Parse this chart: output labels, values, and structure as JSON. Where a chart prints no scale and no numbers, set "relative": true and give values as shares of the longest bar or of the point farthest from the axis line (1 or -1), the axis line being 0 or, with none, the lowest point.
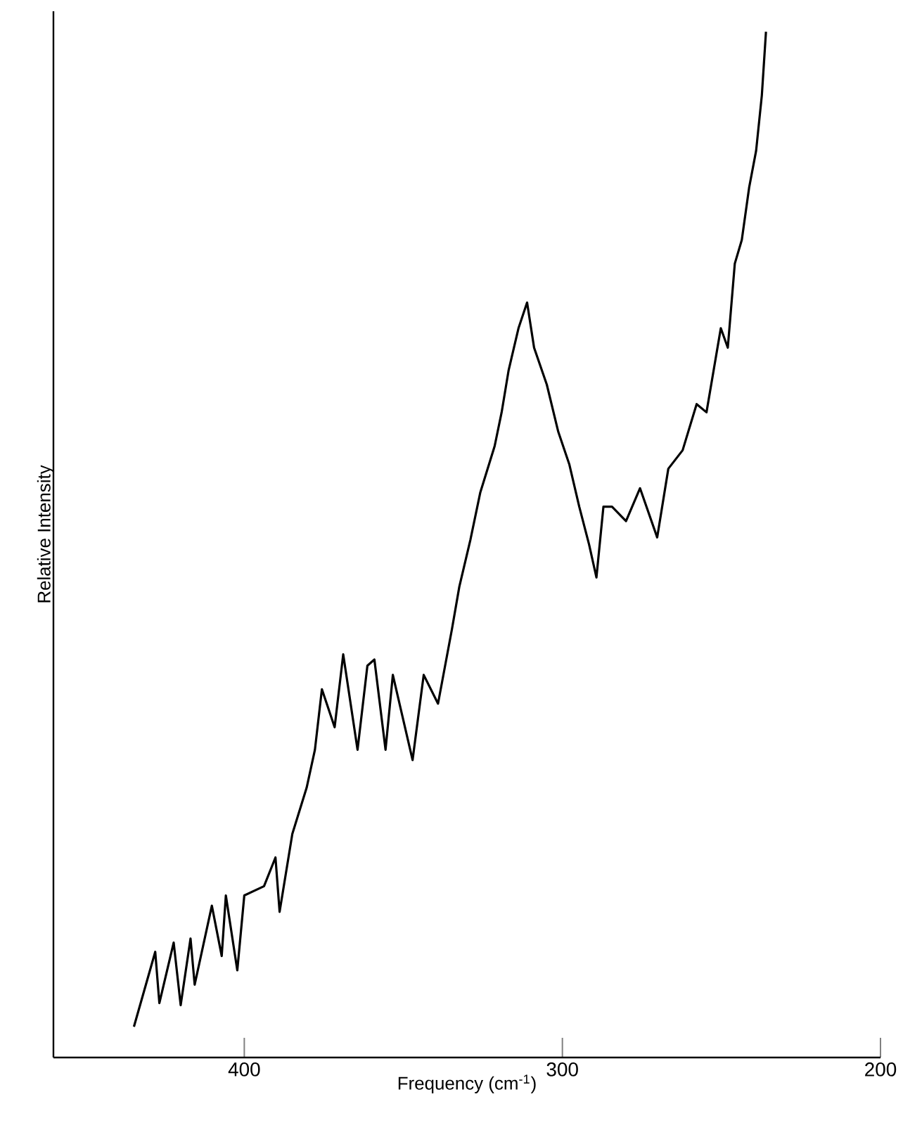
{
  "chart_data": {
    "type": "line",
    "xlabel": "Frequency (cm$^{-1}$)",
    "ylabel": "Relative Intensity",
    "relative": true,
    "color": "#000000",
    "xlim": [
      460,
      200
    ],
    "xticks": [
      400,
      300,
      200
    ],
    "x": [
      434.7,
      428.0,
      426.7,
      422.2,
      420.0,
      416.9,
      415.6,
      410.2,
      407.1,
      405.8,
      402.2,
      400.0,
      393.8,
      390.2,
      388.9,
      384.9,
      380.4,
      377.8,
      375.6,
      371.6,
      368.9,
      364.4,
      361.3,
      359.1,
      355.6,
      353.3,
      347.1,
      343.6,
      339.1,
      334.7,
      332.4,
      328.9,
      325.8,
      321.3,
      319.1,
      316.9,
      313.8,
      311.1,
      308.9,
      304.9,
      301.3,
      297.8,
      294.7,
      291.6,
      289.3,
      287.1,
      284.4,
      280.0,
      275.6,
      270.2,
      266.7,
      262.2,
      257.8,
      254.7,
      250.2,
      248.0,
      245.8,
      243.6,
      241.3,
      239.1,
      237.3,
      236.0
    ],
    "values": [
      0.03,
      0.103,
      0.053,
      0.112,
      0.051,
      0.116,
      0.071,
      0.148,
      0.099,
      0.158,
      0.085,
      0.158,
      0.167,
      0.195,
      0.142,
      0.218,
      0.263,
      0.3,
      0.359,
      0.322,
      0.393,
      0.3,
      0.382,
      0.388,
      0.3,
      0.373,
      0.29,
      0.373,
      0.345,
      0.418,
      0.459,
      0.505,
      0.551,
      0.596,
      0.629,
      0.67,
      0.711,
      0.736,
      0.692,
      0.656,
      0.61,
      0.578,
      0.537,
      0.5,
      0.468,
      0.537,
      0.537,
      0.523,
      0.555,
      0.507,
      0.574,
      0.592,
      0.637,
      0.629,
      0.711,
      0.692,
      0.774,
      0.797,
      0.848,
      0.884,
      0.938,
      1.0
    ]
  }
}
